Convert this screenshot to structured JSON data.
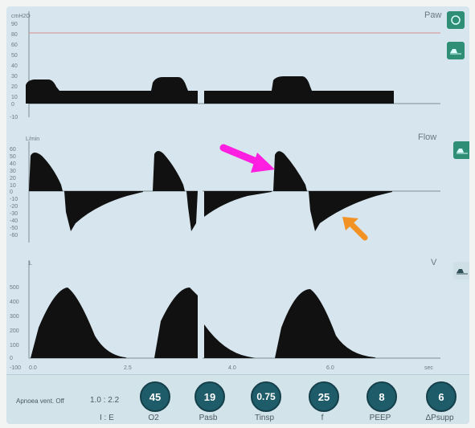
{
  "panels": {
    "paw": {
      "title": "Paw",
      "unit": "cmH2O",
      "ticks": [
        "90",
        "80",
        "60",
        "50",
        "40",
        "30",
        "20",
        "10",
        "0",
        "-10"
      ]
    },
    "flow": {
      "title": "Flow",
      "unit": "L/min",
      "ticks": [
        "60",
        "50",
        "40",
        "30",
        "20",
        "10",
        "0",
        "-10",
        "-20",
        "-30",
        "-40",
        "-50",
        "-60"
      ]
    },
    "volume": {
      "title": "V",
      "unit": "L",
      "ticks": [
        "500",
        "400",
        "300",
        "200",
        "100",
        "0",
        "-100"
      ]
    }
  },
  "time_axis": {
    "ticks": [
      "0.0",
      "2.5",
      "4.0",
      "6.0"
    ],
    "unit": "sec"
  },
  "colors": {
    "screen_bg": "#d7e6ee",
    "waveform": "#111111",
    "alarm_line": "#d98f8f",
    "pink_arrow": "#ff1fe0",
    "orange_arrow": "#f29224",
    "side_button": "#2f8e76",
    "knob": "#1f5c6a"
  },
  "side_buttons": [
    {
      "icon": "settings-icon"
    },
    {
      "icon": "waveform-scale-icon"
    },
    {
      "icon": "waveform-scale-icon"
    },
    {
      "icon": "waveform-scale-icon"
    }
  ],
  "bottom_bar": {
    "mode": "Apnoea vent. Off",
    "ie_ratio": "1.0 : 2.2",
    "ie_label": "I : E",
    "knobs": [
      {
        "value": "45",
        "label": "O2"
      },
      {
        "value": "19",
        "label": "Pasb"
      },
      {
        "value": "0.75",
        "label": "Tinsp"
      },
      {
        "value": "25",
        "label": "f"
      },
      {
        "value": "8",
        "label": "PEEP"
      },
      {
        "value": "6",
        "label": "ΔPsupp"
      }
    ]
  },
  "annotations": [
    {
      "type": "arrow",
      "color": "pink"
    },
    {
      "type": "arrow",
      "color": "orange"
    }
  ]
}
